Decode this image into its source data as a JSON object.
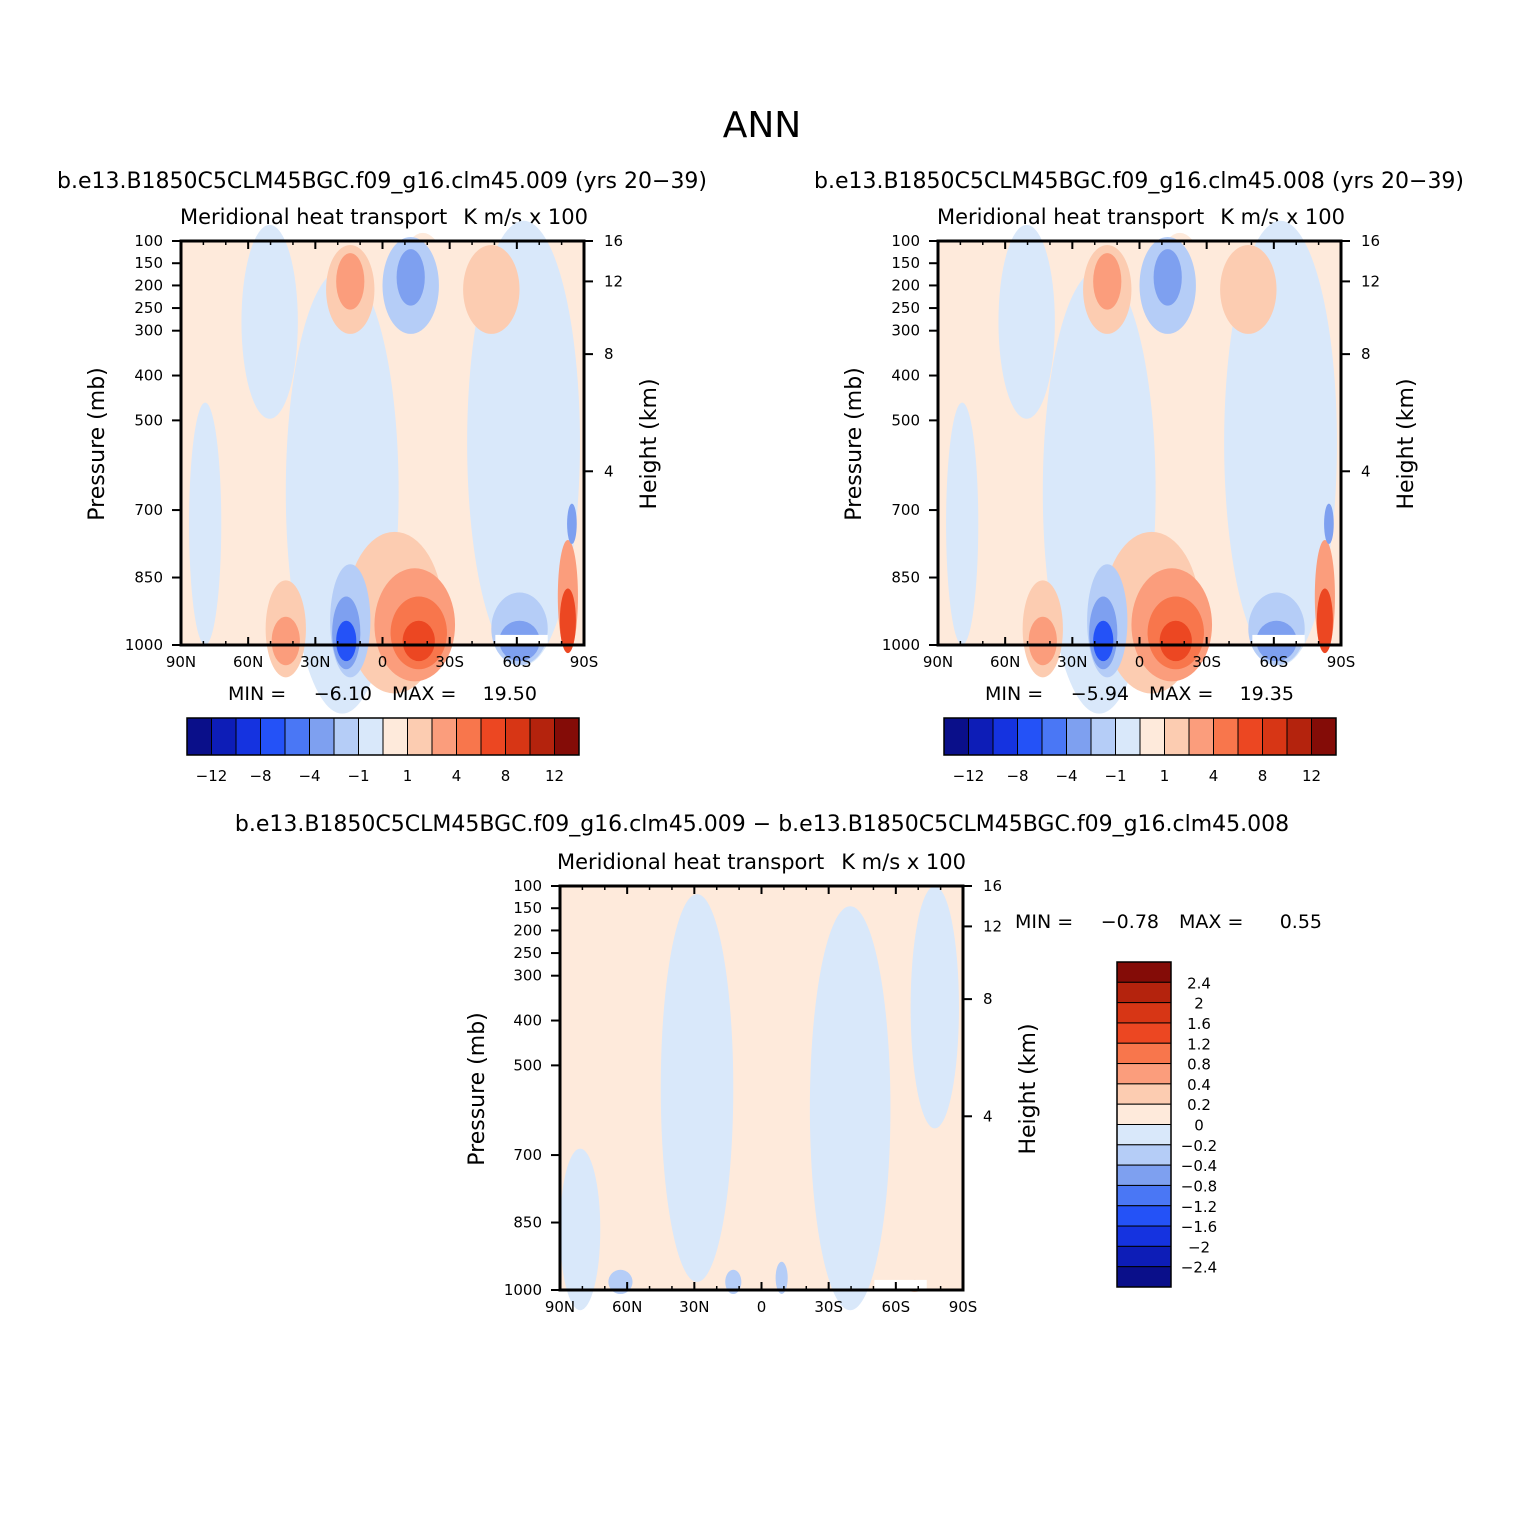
{
  "figure": {
    "main_title": "ANN"
  },
  "colors": {
    "diverging_13": [
      "#0a0f8a",
      "#0d1db7",
      "#1533e0",
      "#2452f7",
      "#4a77f5",
      "#7ea0f0",
      "#b5cdf7",
      "#d9e8fa",
      "#feeadb",
      "#fcccb1",
      "#fb9d7c",
      "#f8764c",
      "#ec4722",
      "#d73615",
      "#b4230d",
      "#840c07"
    ],
    "colorbar_top_colors": [
      "#0a0f8a",
      "#0d1db7",
      "#1533e0",
      "#2452f7",
      "#4a77f5",
      "#7ea0f0",
      "#b5cdf7",
      "#d9e8fa",
      "#feeadb",
      "#fcccb1",
      "#fb9d7c",
      "#f8764c",
      "#ec4722",
      "#d73615",
      "#b4230d",
      "#840c07"
    ],
    "colorbar_diff_colors": [
      "#840c07",
      "#b4230d",
      "#d73615",
      "#ec4722",
      "#f8764c",
      "#fb9d7c",
      "#fcccb1",
      "#feeadb",
      "#d9e8fa",
      "#b5cdf7",
      "#7ea0f0",
      "#4a77f5",
      "#2452f7",
      "#1533e0",
      "#0d1db7",
      "#0a0f8a"
    ]
  },
  "chart_data": [
    {
      "type": "heatmap",
      "panel": "left",
      "title": "b.e13.B1850C5CLM45BGC.f09_g16.clm45.009 (yrs 20−39)",
      "subtitle_left": "Meridional heat transport",
      "subtitle_right": "K m/s x 100",
      "ylabel": "Pressure (mb)",
      "ylabel_right": "Height (km)",
      "x_ticks": [
        "90N",
        "60N",
        "30N",
        "0",
        "30S",
        "60S",
        "90S"
      ],
      "y_ticks": [
        "100",
        "150",
        "200",
        "250",
        "300",
        "400",
        "500",
        "700",
        "850",
        "1000"
      ],
      "y2_ticks": [
        "16",
        "12",
        "8",
        "4"
      ],
      "min_label": "MIN =",
      "min_value": "−6.10",
      "max_label": "MAX =",
      "max_value": "19.50",
      "min": -6.1,
      "max": 19.5,
      "colorbar_labels": [
        "−12",
        "−8",
        "−4",
        "−1",
        "1",
        "4",
        "8",
        "12"
      ]
    },
    {
      "type": "heatmap",
      "panel": "right",
      "title": "b.e13.B1850C5CLM45BGC.f09_g16.clm45.008 (yrs 20−39)",
      "subtitle_left": "Meridional heat transport",
      "subtitle_right": "K m/s x 100",
      "ylabel": "Pressure (mb)",
      "ylabel_right": "Height (km)",
      "x_ticks": [
        "90N",
        "60N",
        "30N",
        "0",
        "30S",
        "60S",
        "90S"
      ],
      "y_ticks": [
        "100",
        "150",
        "200",
        "250",
        "300",
        "400",
        "500",
        "700",
        "850",
        "1000"
      ],
      "y2_ticks": [
        "16",
        "12",
        "8",
        "4"
      ],
      "min_label": "MIN =",
      "min_value": "−5.94",
      "max_label": "MAX =",
      "max_value": "19.35",
      "min": -5.94,
      "max": 19.35,
      "colorbar_labels": [
        "−12",
        "−8",
        "−4",
        "−1",
        "1",
        "4",
        "8",
        "12"
      ]
    },
    {
      "type": "heatmap",
      "panel": "difference",
      "title": "b.e13.B1850C5CLM45BGC.f09_g16.clm45.009 − b.e13.B1850C5CLM45BGC.f09_g16.clm45.008",
      "subtitle_left": "Meridional heat transport",
      "subtitle_right": "K m/s x 100",
      "ylabel": "Pressure (mb)",
      "ylabel_right": "Height (km)",
      "x_ticks": [
        "90N",
        "60N",
        "30N",
        "0",
        "30S",
        "60S",
        "90S"
      ],
      "y_ticks": [
        "100",
        "150",
        "200",
        "250",
        "300",
        "400",
        "500",
        "700",
        "850",
        "1000"
      ],
      "y2_ticks": [
        "16",
        "12",
        "8",
        "4"
      ],
      "min_label": "MIN =",
      "min_value": "−0.78",
      "max_label": "MAX =",
      "max_value": "0.55",
      "min": -0.78,
      "max": 0.55,
      "colorbar_labels": [
        "2.4",
        "2",
        "1.6",
        "1.2",
        "0.8",
        "0.4",
        "0.2",
        "0",
        "−0.2",
        "−0.4",
        "−0.8",
        "−1.2",
        "−1.6",
        "−2",
        "−2.4"
      ]
    }
  ]
}
